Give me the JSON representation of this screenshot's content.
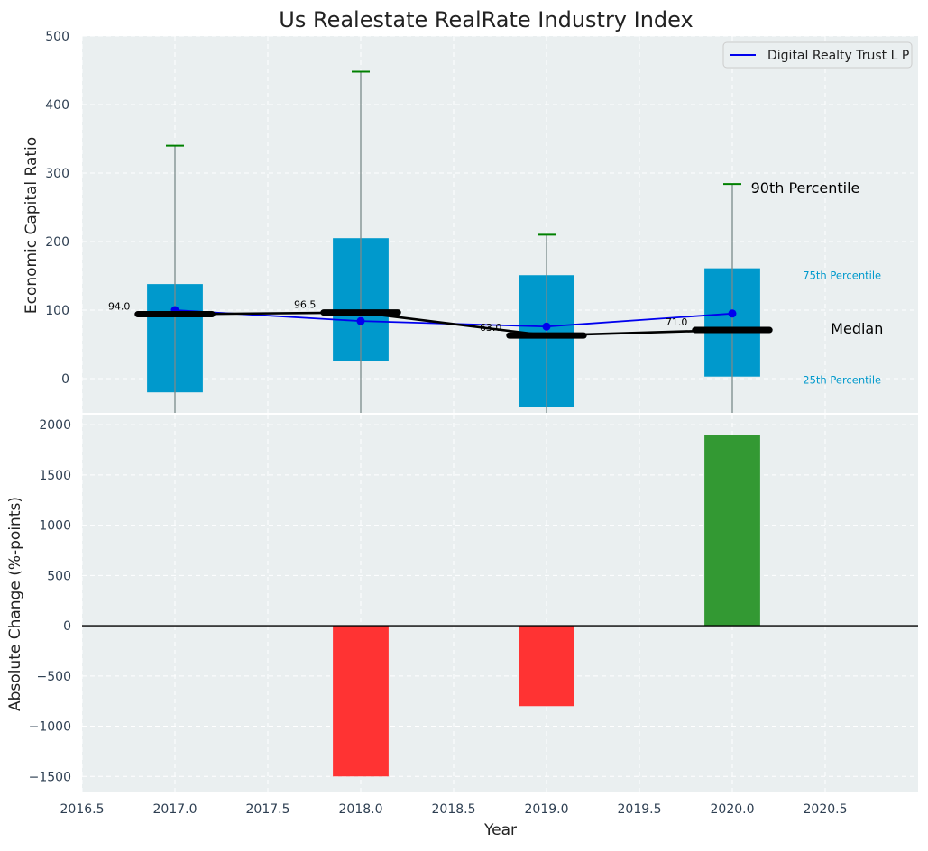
{
  "chart_data": [
    {
      "type": "box",
      "title": "Us Realestate RealRate Industry Index",
      "ylabel": "Economic Capital Ratio",
      "ylim": [
        -50,
        500
      ],
      "yticks": [
        0,
        100,
        200,
        300,
        400,
        500
      ],
      "xlim": [
        2016.5,
        2021.0
      ],
      "grid": true,
      "legend_position": "top-right",
      "legend": [
        "Digital Realty Trust L P"
      ],
      "boxes": [
        {
          "x": 2017.0,
          "p25": -20,
          "p75": 138,
          "p90": 340,
          "median": 94.0
        },
        {
          "x": 2018.0,
          "p25": 25,
          "p75": 205,
          "p90": 448,
          "median": 96.5
        },
        {
          "x": 2019.0,
          "p25": -42,
          "p75": 151,
          "p90": 210,
          "median": 63.0
        },
        {
          "x": 2020.0,
          "p25": 3,
          "p75": 161,
          "p90": 284,
          "median": 71.0
        }
      ],
      "median_labels": [
        "94.0",
        "96.5",
        "63.0",
        "71.0"
      ],
      "series": [
        {
          "name": "Digital Realty Trust L P",
          "x": [
            2017.0,
            2018.0,
            2019.0,
            2020.0
          ],
          "values": [
            100,
            84,
            76,
            95
          ],
          "color": "#0000ee"
        }
      ],
      "annotations": {
        "p90": "90th Percentile",
        "p75": "75th Percentile",
        "median": "Median",
        "p25": "25th Percentile"
      },
      "colors": {
        "box": "#0099cc",
        "whisker_cap": "#008000",
        "median": "#000000",
        "annotation_small": "#0099cc"
      }
    },
    {
      "type": "bar",
      "xlabel": "Year",
      "ylabel": "Absolute Change (%-points)",
      "xlim": [
        2016.5,
        2021.0
      ],
      "ylim": [
        -1650,
        2100
      ],
      "yticks": [
        -1500,
        -1000,
        -500,
        0,
        500,
        1000,
        1500,
        2000
      ],
      "xticks": [
        "2016.5",
        "2017.0",
        "2017.5",
        "2018.0",
        "2018.5",
        "2019.0",
        "2019.5",
        "2020.0",
        "2020.5"
      ],
      "grid": true,
      "x": [
        2018.0,
        2019.0,
        2020.0
      ],
      "values": [
        -1500,
        -800,
        1900
      ],
      "colors": {
        "negative": "#ff3333",
        "positive": "#339933"
      }
    }
  ]
}
